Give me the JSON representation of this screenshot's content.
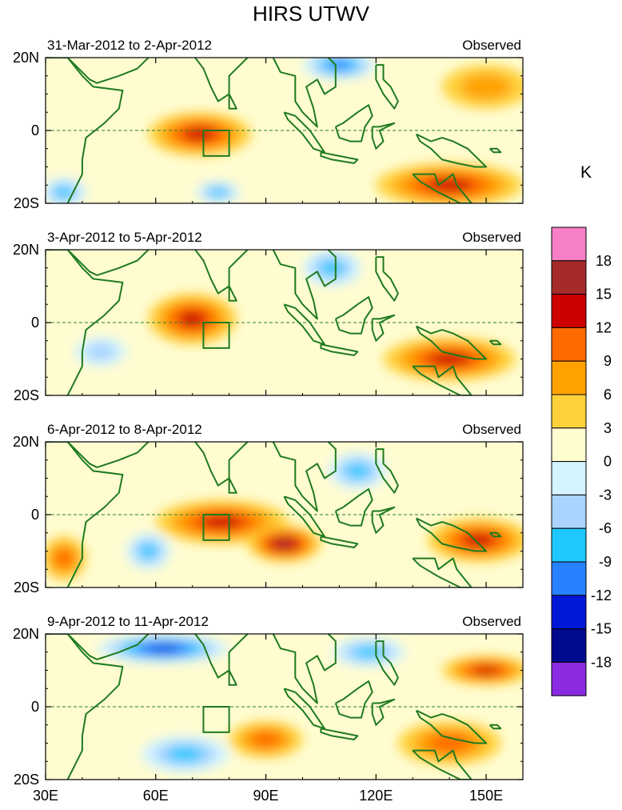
{
  "chart_data": {
    "type": "heatmap",
    "title": "HIRS UTWV",
    "units": "K",
    "colorbar": {
      "tick_labels": [
        "18",
        "15",
        "12",
        "9",
        "6",
        "3",
        "0",
        "-3",
        "-6",
        "-9",
        "-12",
        "-15",
        "-18"
      ],
      "colors": [
        "#f77fc6",
        "#a52a2a",
        "#cc0000",
        "#ff6a00",
        "#ffa200",
        "#ffd23c",
        "#fffcd0",
        "#d4f4ff",
        "#a8d4ff",
        "#1ec8ff",
        "#2882ff",
        "#0017d8",
        "#000a8c",
        "#8a2be2"
      ]
    },
    "x_ticks": [
      "30E",
      "60E",
      "90E",
      "120E",
      "150E"
    ],
    "x_range": [
      30,
      160
    ],
    "y_ticks": [
      "20N",
      "0",
      "20S"
    ],
    "y_range": [
      -20,
      20
    ],
    "equator_line": "dashed",
    "box_region": {
      "lon": [
        73,
        80
      ],
      "lat": [
        -7,
        0
      ]
    },
    "panels": [
      {
        "date_range": "31-Mar-2012 to 2-Apr-2012",
        "label": "Observed",
        "features": [
          {
            "lon": 72,
            "lat": -1,
            "value": 12,
            "rx": 14,
            "ry": 6
          },
          {
            "lon": 140,
            "lat": -15,
            "value": 12,
            "rx": 20,
            "ry": 6
          },
          {
            "lon": 150,
            "lat": 12,
            "value": 6,
            "rx": 12,
            "ry": 6
          },
          {
            "lon": 35,
            "lat": -17,
            "value": -9,
            "rx": 6,
            "ry": 4
          },
          {
            "lon": 110,
            "lat": 18,
            "value": -12,
            "rx": 10,
            "ry": 4
          },
          {
            "lon": 77,
            "lat": -17,
            "value": -9,
            "rx": 6,
            "ry": 3
          }
        ]
      },
      {
        "date_range": "3-Apr-2012 to 5-Apr-2012",
        "label": "Observed",
        "features": [
          {
            "lon": 70,
            "lat": 1,
            "value": 12,
            "rx": 12,
            "ry": 7
          },
          {
            "lon": 140,
            "lat": -10,
            "value": 12,
            "rx": 18,
            "ry": 6
          },
          {
            "lon": 108,
            "lat": 15,
            "value": -9,
            "rx": 8,
            "ry": 5
          },
          {
            "lon": 45,
            "lat": -8,
            "value": -6,
            "rx": 7,
            "ry": 4
          }
        ]
      },
      {
        "date_range": "6-Apr-2012 to 8-Apr-2012",
        "label": "Observed",
        "features": [
          {
            "lon": 78,
            "lat": -2,
            "value": 12,
            "rx": 18,
            "ry": 6
          },
          {
            "lon": 95,
            "lat": -8,
            "value": 15,
            "rx": 10,
            "ry": 5
          },
          {
            "lon": 148,
            "lat": -7,
            "value": 12,
            "rx": 14,
            "ry": 6
          },
          {
            "lon": 35,
            "lat": -12,
            "value": 9,
            "rx": 6,
            "ry": 6
          },
          {
            "lon": 58,
            "lat": -10,
            "value": -9,
            "rx": 6,
            "ry": 5
          },
          {
            "lon": 115,
            "lat": 12,
            "value": -9,
            "rx": 8,
            "ry": 5
          }
        ]
      },
      {
        "date_range": "9-Apr-2012 to 11-Apr-2012",
        "label": "Observed",
        "features": [
          {
            "lon": 62,
            "lat": 16,
            "value": -15,
            "rx": 18,
            "ry": 4
          },
          {
            "lon": 90,
            "lat": -9,
            "value": 9,
            "rx": 10,
            "ry": 5
          },
          {
            "lon": 150,
            "lat": 10,
            "value": 12,
            "rx": 12,
            "ry": 4
          },
          {
            "lon": 140,
            "lat": -10,
            "value": 9,
            "rx": 14,
            "ry": 6
          },
          {
            "lon": 68,
            "lat": -13,
            "value": -9,
            "rx": 12,
            "ry": 5
          },
          {
            "lon": 118,
            "lat": 15,
            "value": -9,
            "rx": 10,
            "ry": 4
          }
        ]
      }
    ]
  }
}
